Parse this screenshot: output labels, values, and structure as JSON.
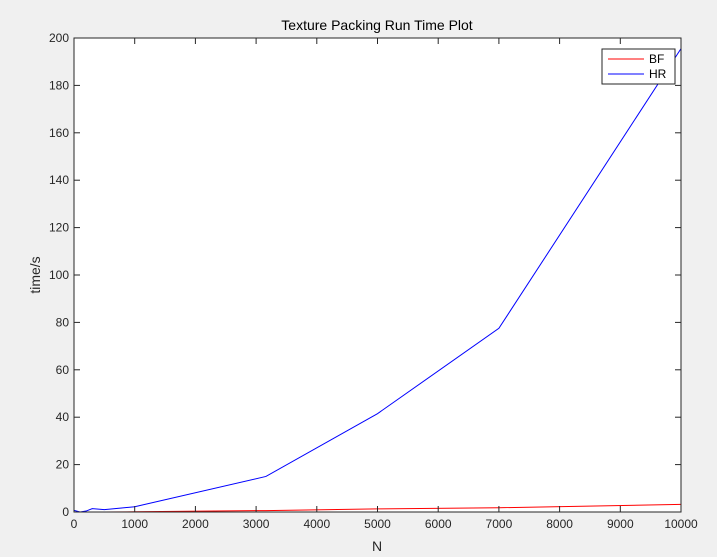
{
  "chart_data": {
    "type": "line",
    "title": "Texture Packing Run Time Plot",
    "xlabel": "N",
    "ylabel": "time/s",
    "xlim": [
      0,
      10000
    ],
    "ylim": [
      0,
      200
    ],
    "xticks": [
      0,
      1000,
      2000,
      3000,
      4000,
      5000,
      6000,
      7000,
      8000,
      9000,
      10000
    ],
    "yticks": [
      0,
      20,
      40,
      60,
      80,
      100,
      120,
      140,
      160,
      180,
      200
    ],
    "grid": false,
    "legend_position": "top-right",
    "series": [
      {
        "name": "BF",
        "color": "#ff0000",
        "x": [
          0,
          100,
          200,
          300,
          400,
          500,
          1000,
          3162,
          5000,
          7000,
          10000
        ],
        "y": [
          0.0,
          0.0,
          0.0,
          0.0,
          0.0,
          0.0,
          0.1,
          0.6,
          1.3,
          1.8,
          3.2
        ]
      },
      {
        "name": "HR",
        "color": "#0000ff",
        "x": [
          0,
          100,
          200,
          300,
          400,
          500,
          1000,
          3162,
          5000,
          7000,
          10000
        ],
        "y": [
          0.7,
          0.0,
          0.4,
          1.4,
          1.2,
          1.0,
          2.2,
          15.0,
          41.5,
          77.5,
          195.5
        ]
      }
    ]
  }
}
